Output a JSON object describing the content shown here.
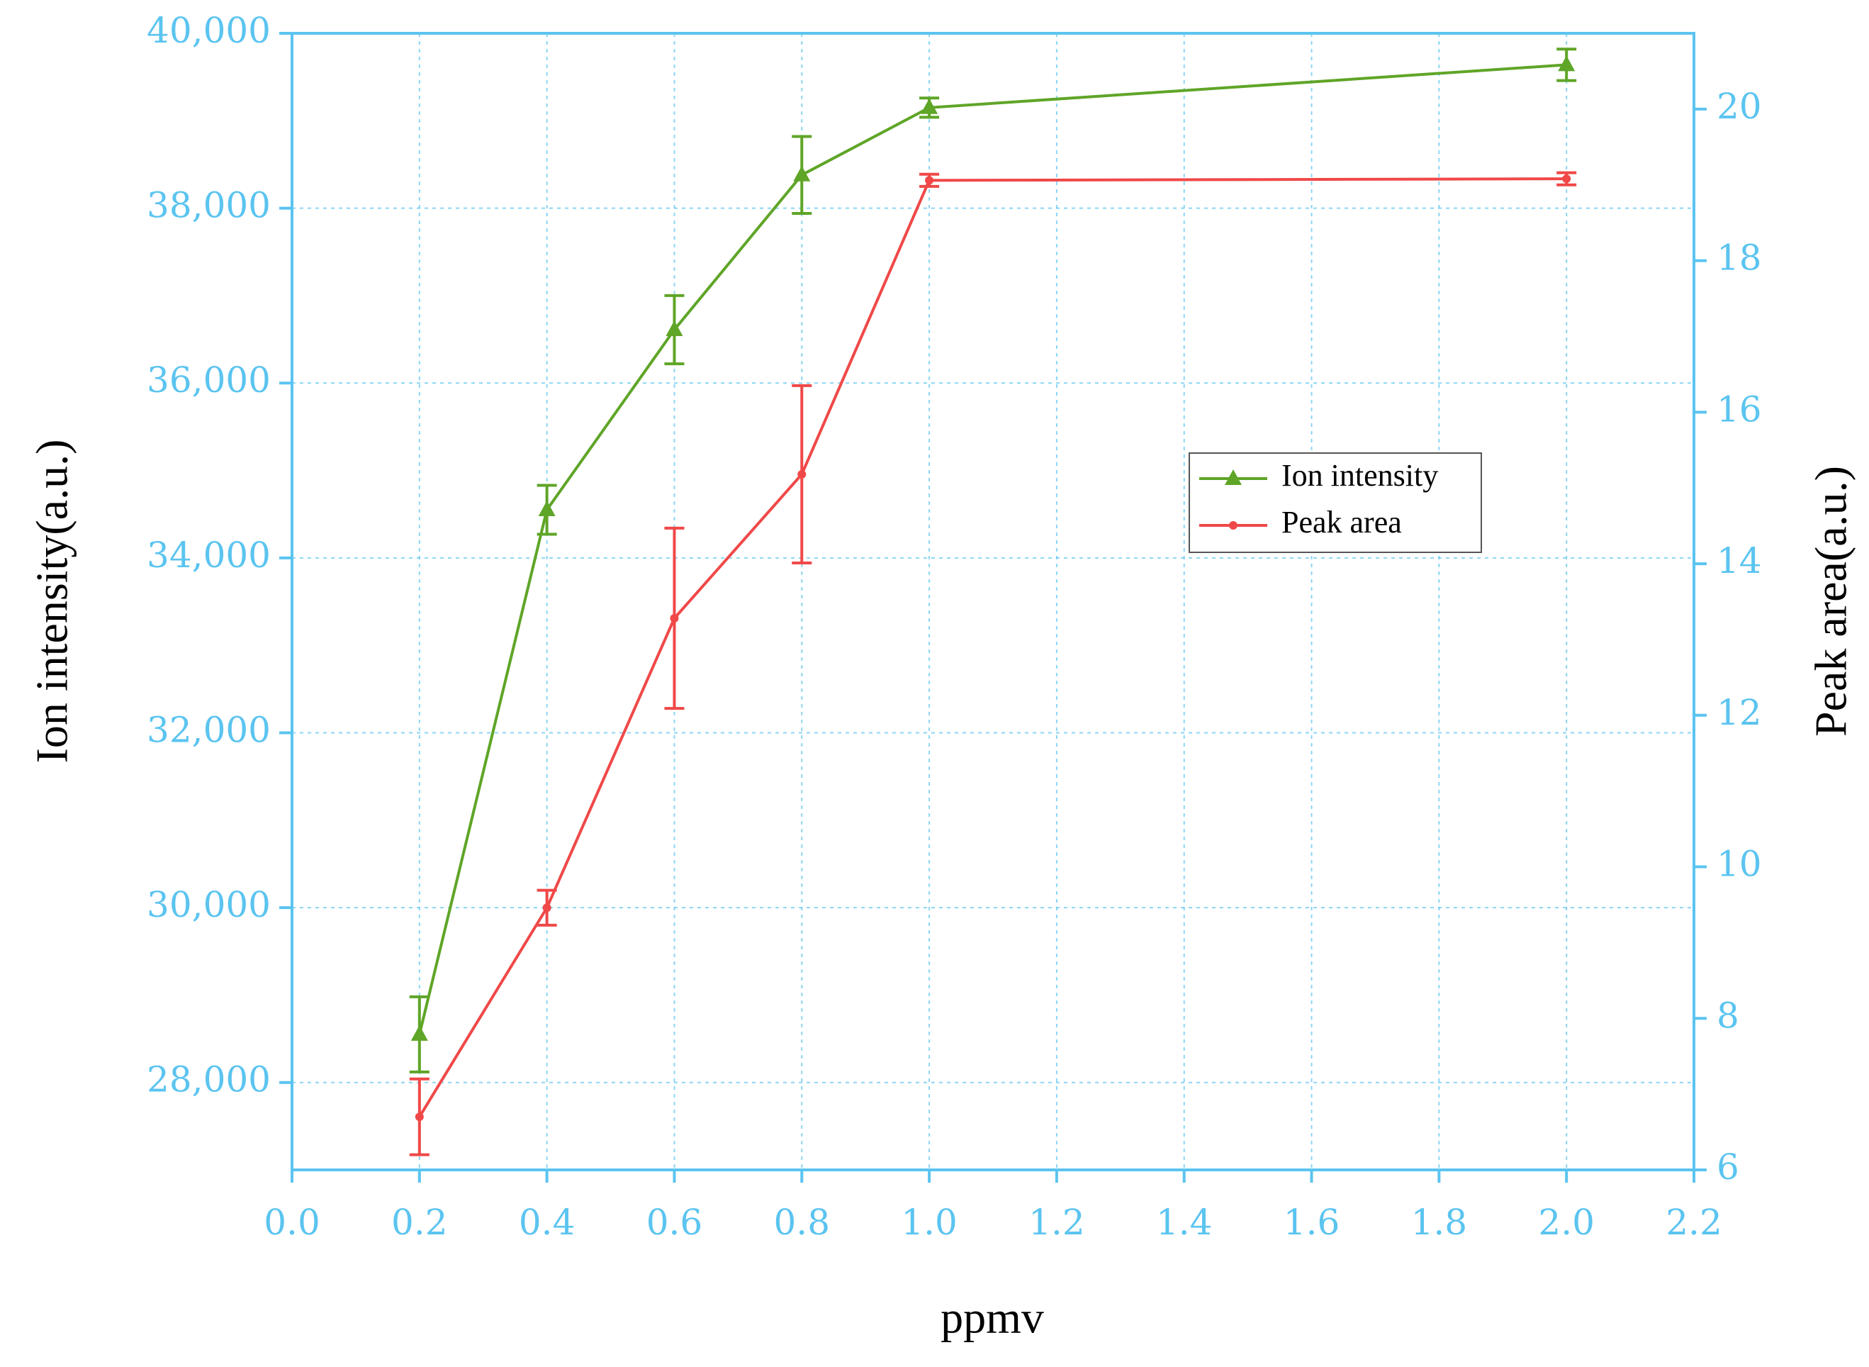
{
  "chart_data": {
    "type": "line",
    "x_label": "ppmv",
    "y_label": "Ion intensity(a.u.)",
    "y2_label": "Peak area(a.u.)",
    "x": [
      0.2,
      0.4,
      0.6,
      0.8,
      1.0,
      2.0
    ],
    "series": [
      {
        "name": "Ion intensity",
        "color": "#5fa527",
        "marker": "triangle",
        "values": [
          28550,
          34550,
          36610,
          38380,
          39150,
          39640
        ],
        "errors": [
          430,
          280,
          390,
          440,
          110,
          180
        ]
      },
      {
        "name": "Peak area",
        "color": "#f04848",
        "marker": "circle",
        "axis": "y2",
        "values": [
          6.7,
          9.46,
          13.28,
          15.18,
          19.06,
          19.08
        ],
        "errors": [
          0.5,
          0.23,
          1.19,
          1.17,
          0.08,
          0.08
        ]
      }
    ],
    "xlim": [
      0,
      2.2
    ],
    "xticks": [
      {
        "value": 0,
        "label": "0.0"
      },
      0.2,
      0.4,
      0.6,
      0.8,
      {
        "value": 1,
        "label": "1.0"
      },
      1.2,
      1.4,
      1.6,
      1.8,
      {
        "value": 2,
        "label": "2.0"
      },
      2.2
    ],
    "ylim": [
      27000,
      40000
    ],
    "yticks": [
      {
        "value": 28000,
        "label": "28,000"
      },
      {
        "value": 30000,
        "label": "30,000"
      },
      {
        "value": 32000,
        "label": "32,000"
      },
      {
        "value": 34000,
        "label": "34,000"
      },
      {
        "value": 36000,
        "label": "36,000"
      },
      {
        "value": 38000,
        "label": "38,000"
      },
      {
        "value": 40000,
        "label": "40,000"
      }
    ],
    "y2lim": [
      6,
      21
    ],
    "y2ticks": [
      6,
      8,
      10,
      12,
      14,
      16,
      18,
      20
    ],
    "grid": true,
    "axis_color": "#5bc4f0",
    "legend_position": "center right"
  }
}
